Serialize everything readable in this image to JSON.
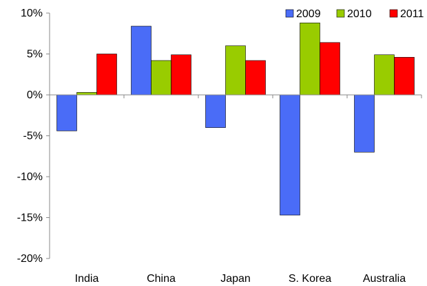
{
  "chart_data": {
    "type": "bar",
    "title": "",
    "xlabel": "",
    "ylabel": "",
    "categories": [
      "India",
      "China",
      "Japan",
      "S. Korea",
      "Australia"
    ],
    "series": [
      {
        "name": "2009",
        "color": "#4a6cf7",
        "values": [
          -4.4,
          8.4,
          -4.0,
          -14.7,
          -7.0
        ]
      },
      {
        "name": "2010",
        "color": "#99cc00",
        "values": [
          0.3,
          4.2,
          6.0,
          8.8,
          4.9
        ]
      },
      {
        "name": "2011",
        "color": "#ff0000",
        "values": [
          5.0,
          4.9,
          4.2,
          6.4,
          4.6
        ]
      }
    ],
    "ylim": [
      -20,
      10
    ],
    "yticks": [
      10,
      5,
      0,
      -5,
      -10,
      -15,
      -20
    ],
    "ytick_labels": [
      "10%",
      "5%",
      "0%",
      "-5%",
      "-10%",
      "-15%",
      "-20%"
    ],
    "legend_position": "top-right",
    "grid": false
  }
}
